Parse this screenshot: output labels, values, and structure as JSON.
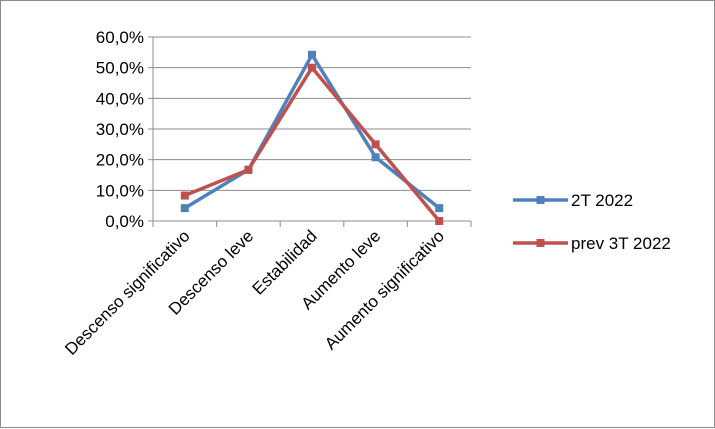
{
  "chart_data": {
    "type": "line",
    "title": "",
    "xlabel": "",
    "ylabel": "",
    "categories": [
      "Descenso significativo",
      "Descenso leve",
      "Estabilidad",
      "Aumento leve",
      "Aumento significativo"
    ],
    "series": [
      {
        "name": "2T 2022",
        "values": [
          4.2,
          16.7,
          54.2,
          20.8,
          4.2
        ],
        "color": "#4f81bd"
      },
      {
        "name": "prev 3T 2022",
        "values": [
          8.3,
          16.7,
          50.0,
          25.0,
          0.0
        ],
        "color": "#c0504d"
      }
    ],
    "y_ticks": [
      "0,0%",
      "10,0%",
      "20,0%",
      "30,0%",
      "40,0%",
      "50,0%",
      "60,0%"
    ],
    "ylim": [
      0,
      60
    ],
    "grid": true,
    "legend_position": "right"
  }
}
